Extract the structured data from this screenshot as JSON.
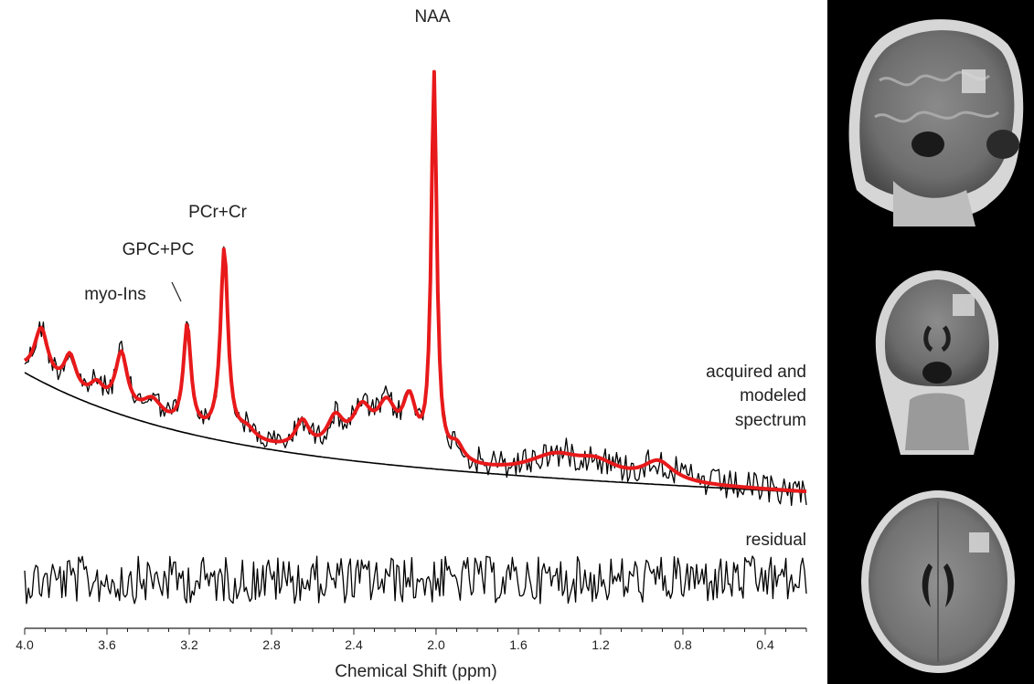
{
  "chart_data": {
    "type": "line",
    "xlabel": "Chemical Shift (ppm)",
    "xlim": [
      4.0,
      0.2
    ],
    "x_reversed": true,
    "xticks": [
      "4.0",
      "3.6",
      "3.2",
      "2.8",
      "2.4",
      "2.0",
      "1.6",
      "1.2",
      "0.8",
      "0.4"
    ],
    "grid": false,
    "series": [
      {
        "name": "acquired",
        "color": "#000000"
      },
      {
        "name": "modeled",
        "color": "#e8191a"
      },
      {
        "name": "baseline",
        "color": "#000000"
      },
      {
        "name": "residual",
        "color": "#000000"
      }
    ],
    "peaks": [
      {
        "label": "NAA",
        "ppm": 2.01
      },
      {
        "label": "PCr+Cr",
        "ppm": 3.03
      },
      {
        "label": "GPC+PC",
        "ppm": 3.21
      },
      {
        "label": "myo-Ins",
        "ppm": 3.53
      }
    ],
    "annotations": {
      "spectrum": [
        "acquired and",
        "modeled",
        "spectrum"
      ],
      "residual": "residual"
    }
  },
  "images": [
    {
      "view": "sagittal"
    },
    {
      "view": "coronal"
    },
    {
      "view": "axial"
    }
  ]
}
